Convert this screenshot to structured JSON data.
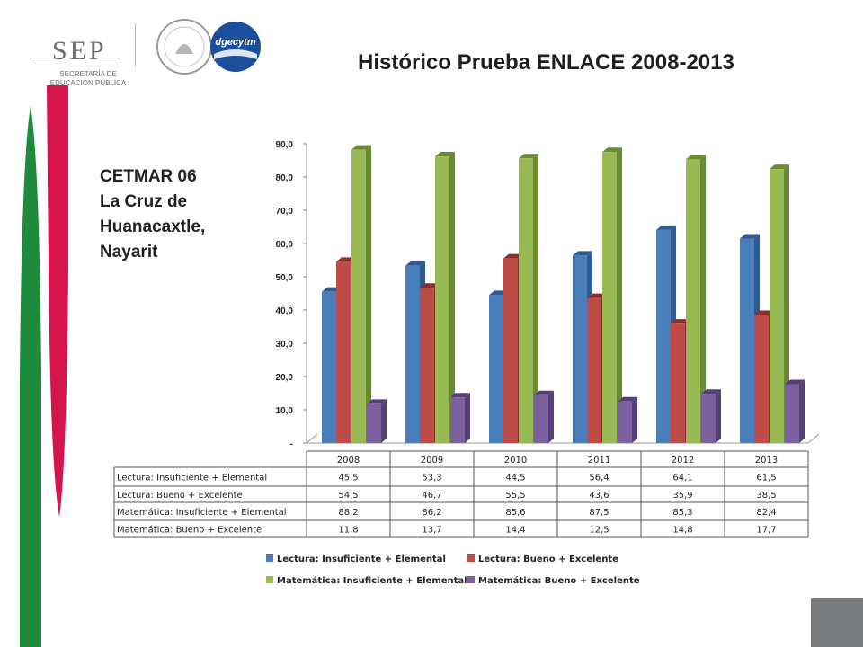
{
  "header": {
    "agency_name": "SEP",
    "agency_subtitle": "SECRETARÍA DE EDUCACIÓN PÚBLICA",
    "partner_logo_text": "dgecytm"
  },
  "slide": {
    "title": "Histórico Prueba ENLACE 2008-2013",
    "school": "CETMAR 06\nLa Cruz de\nHuanacaxtle,\nNayarit"
  },
  "colors": {
    "green_strip": "#1e8a3c",
    "red_strip": "#d4144a",
    "series": [
      "#4a7ebb",
      "#be4b48",
      "#98b954",
      "#7d60a0"
    ],
    "series_dark": [
      "#2f5b8f",
      "#8c2f2c",
      "#6b8a34",
      "#56407a"
    ]
  },
  "chart_data": {
    "type": "bar",
    "categories": [
      "2008",
      "2009",
      "2010",
      "2011",
      "2012",
      "2013"
    ],
    "series": [
      {
        "name": "Lectura: Insuficiente + Elemental",
        "values": [
          45.5,
          53.3,
          44.5,
          56.4,
          64.1,
          61.5
        ]
      },
      {
        "name": "Lectura: Bueno + Excelente",
        "values": [
          54.5,
          46.7,
          55.5,
          43.6,
          35.9,
          38.5
        ]
      },
      {
        "name": "Matemática: Insuficiente + Elemental",
        "values": [
          88.2,
          86.2,
          85.6,
          87.5,
          85.3,
          82.4
        ]
      },
      {
        "name": "Matemática: Bueno + Excelente",
        "values": [
          11.8,
          13.7,
          14.4,
          12.5,
          14.8,
          17.7
        ]
      }
    ],
    "y_ticks": [
      "-",
      "10,0",
      "20,0",
      "30,0",
      "40,0",
      "50,0",
      "60,0",
      "70,0",
      "80,0",
      "90,0"
    ],
    "ylim": [
      0,
      90
    ],
    "data_table": true,
    "legend": "bottom"
  }
}
